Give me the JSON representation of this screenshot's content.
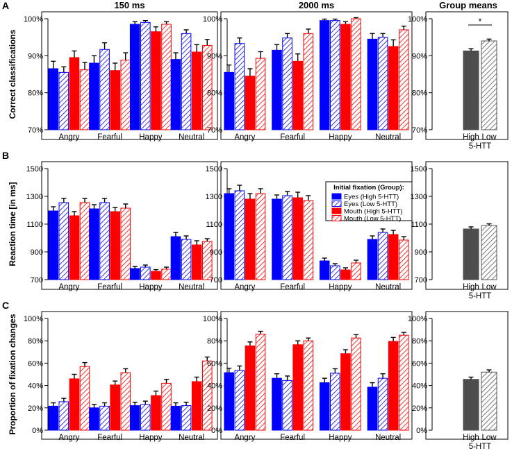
{
  "colors": {
    "high": "#0000ff",
    "mouth": "#ff0000",
    "group_high": "#4d4d4d",
    "group_low": "#555555"
  },
  "chart_data": [
    {
      "type": "bar",
      "panel": "A",
      "title": "150 ms",
      "ylabel": "Correct classifications",
      "ylim": [
        70,
        100
      ],
      "yticks": [
        70,
        80,
        90,
        100
      ],
      "ytick_labels": [
        "70%",
        "80%",
        "90%",
        "100%"
      ],
      "categories": [
        "Angry",
        "Fearful",
        "Happy",
        "Neutral"
      ],
      "series": [
        {
          "name": "Eyes (High 5-HTT)",
          "values": [
            86.5,
            88.0,
            98.5,
            89.0
          ],
          "errors": [
            2.0,
            2.0,
            0.7,
            1.8
          ]
        },
        {
          "name": "Eyes (Low 5-HTT)",
          "values": [
            85.5,
            91.7,
            99.0,
            96.0
          ],
          "errors": [
            1.5,
            1.8,
            0.5,
            1.0
          ]
        },
        {
          "name": "Mouth (High 5-HTT)",
          "values": [
            89.5,
            86.0,
            96.5,
            91.0
          ],
          "errors": [
            1.8,
            2.0,
            1.3,
            2.0
          ]
        },
        {
          "name": "Mouth (Low 5-HTT)",
          "values": [
            86.2,
            88.8,
            98.5,
            92.8
          ],
          "errors": [
            2.0,
            2.0,
            0.7,
            1.6
          ]
        }
      ]
    },
    {
      "type": "bar",
      "panel": "A",
      "title": "2000 ms",
      "ylim": [
        70,
        100
      ],
      "yticks": [
        70,
        80,
        90,
        100
      ],
      "ytick_labels": [
        "70%",
        "80%",
        "90%",
        "100%"
      ],
      "categories": [
        "Angry",
        "Fearful",
        "Happy",
        "Neutral"
      ],
      "series": [
        {
          "name": "Eyes (High 5-HTT)",
          "values": [
            85.5,
            91.5,
            99.5,
            94.5
          ],
          "errors": [
            2.0,
            1.5,
            0.4,
            1.5
          ]
        },
        {
          "name": "Eyes (Low 5-HTT)",
          "values": [
            93.3,
            94.8,
            99.5,
            95.0
          ],
          "errors": [
            1.5,
            1.2,
            0.4,
            1.0
          ]
        },
        {
          "name": "Mouth (High 5-HTT)",
          "values": [
            84.5,
            88.5,
            98.5,
            92.5
          ],
          "errors": [
            2.0,
            2.0,
            0.7,
            1.8
          ]
        },
        {
          "name": "Mouth (Low 5-HTT)",
          "values": [
            89.3,
            96.0,
            100.0,
            97.0
          ],
          "errors": [
            1.8,
            1.2,
            0.3,
            1.0
          ]
        }
      ]
    },
    {
      "type": "bar",
      "panel": "A",
      "title": "Group means",
      "ylim": [
        70,
        100
      ],
      "yticks": [
        70,
        80,
        90,
        100
      ],
      "ytick_labels": [
        "70%",
        "80%",
        "90%",
        "100%"
      ],
      "categories": [
        "High",
        "Low"
      ],
      "xlabel": "5-HTT",
      "significance": "*",
      "series": [
        {
          "name": "Group",
          "values": [
            91.3,
            94.0
          ],
          "errors": [
            0.6,
            0.5
          ]
        }
      ]
    },
    {
      "type": "bar",
      "panel": "B",
      "ylabel": "Reaction time [in ms]",
      "ylim": [
        700,
        1500
      ],
      "yticks": [
        700,
        900,
        1100,
        1300,
        1500
      ],
      "ytick_labels": [
        "700",
        "900",
        "1100",
        "1300",
        "1500"
      ],
      "categories": [
        "Angry",
        "Fearful",
        "Happy",
        "Neutral"
      ],
      "series": [
        {
          "name": "Eyes (High 5-HTT)",
          "values": [
            1195,
            1210,
            780,
            1010
          ],
          "errors": [
            30,
            30,
            15,
            30
          ]
        },
        {
          "name": "Eyes (Low 5-HTT)",
          "values": [
            1255,
            1255,
            790,
            990
          ],
          "errors": [
            30,
            30,
            15,
            25
          ]
        },
        {
          "name": "Mouth (High 5-HTT)",
          "values": [
            1160,
            1190,
            760,
            950
          ],
          "errors": [
            30,
            30,
            12,
            30
          ]
        },
        {
          "name": "Mouth (Low 5-HTT)",
          "values": [
            1255,
            1215,
            775,
            975
          ],
          "errors": [
            30,
            30,
            15,
            20
          ]
        }
      ]
    },
    {
      "type": "bar",
      "panel": "B",
      "ylim": [
        700,
        1500
      ],
      "yticks": [
        700,
        900,
        1100,
        1300,
        1500
      ],
      "ytick_labels": [
        "700",
        "900",
        "1100",
        "1300",
        "1500"
      ],
      "categories": [
        "Angry",
        "Fearful",
        "Happy",
        "Neutral"
      ],
      "legend_title": "Initial fixation (Group):",
      "series": [
        {
          "name": "Eyes (High 5-HTT)",
          "values": [
            1320,
            1280,
            835,
            990
          ],
          "errors": [
            35,
            30,
            20,
            25
          ]
        },
        {
          "name": "Eyes (Low 5-HTT)",
          "values": [
            1340,
            1305,
            800,
            1040
          ],
          "errors": [
            40,
            30,
            15,
            25
          ]
        },
        {
          "name": "Mouth (High 5-HTT)",
          "values": [
            1280,
            1290,
            770,
            1025
          ],
          "errors": [
            40,
            40,
            15,
            30
          ]
        },
        {
          "name": "Mouth (Low 5-HTT)",
          "values": [
            1320,
            1270,
            820,
            985
          ],
          "errors": [
            35,
            35,
            20,
            25
          ]
        }
      ]
    },
    {
      "type": "bar",
      "panel": "B",
      "ylim": [
        700,
        1500
      ],
      "yticks": [
        700,
        900,
        1100,
        1300,
        1500
      ],
      "ytick_labels": [
        "700",
        "900",
        "1100",
        "1300",
        "1500"
      ],
      "categories": [
        "High",
        "Low"
      ],
      "xlabel": "5-HTT",
      "series": [
        {
          "name": "Group",
          "values": [
            1065,
            1090
          ],
          "errors": [
            15,
            12
          ]
        }
      ]
    },
    {
      "type": "bar",
      "panel": "C",
      "ylabel": "Proportion of fixation changes",
      "ylim": [
        0,
        100
      ],
      "yticks": [
        0,
        20,
        40,
        60,
        80,
        100
      ],
      "ytick_labels": [
        "0%",
        "20%",
        "40%",
        "60%",
        "80%",
        "100%"
      ],
      "categories": [
        "Angry",
        "Fearful",
        "Happy",
        "Neutral"
      ],
      "series": [
        {
          "name": "Eyes (High 5-HTT)",
          "values": [
            21.5,
            20.0,
            22.0,
            21.5
          ],
          "errors": [
            3.0,
            3.0,
            3.0,
            3.0
          ]
        },
        {
          "name": "Eyes (Low 5-HTT)",
          "values": [
            25.5,
            21.5,
            23.0,
            22.0
          ],
          "errors": [
            3.0,
            3.0,
            3.0,
            3.0
          ]
        },
        {
          "name": "Mouth (High 5-HTT)",
          "values": [
            46.0,
            40.5,
            31.0,
            43.5
          ],
          "errors": [
            4.0,
            3.5,
            4.0,
            4.0
          ]
        },
        {
          "name": "Mouth (Low 5-HTT)",
          "values": [
            57.0,
            51.5,
            42.0,
            62.0
          ],
          "errors": [
            3.5,
            3.5,
            3.5,
            3.5
          ]
        }
      ]
    },
    {
      "type": "bar",
      "panel": "C",
      "ylim": [
        0,
        100
      ],
      "yticks": [
        0,
        20,
        40,
        60,
        80,
        100
      ],
      "ytick_labels": [
        "0%",
        "20%",
        "40%",
        "60%",
        "80%",
        "100%"
      ],
      "categories": [
        "Angry",
        "Fearful",
        "Happy",
        "Neutral"
      ],
      "series": [
        {
          "name": "Eyes (High 5-HTT)",
          "values": [
            51.5,
            46.5,
            42.5,
            38.5
          ],
          "errors": [
            4.0,
            4.0,
            4.0,
            4.0
          ]
        },
        {
          "name": "Eyes (Low 5-HTT)",
          "values": [
            53.5,
            44.5,
            51.0,
            46.5
          ],
          "errors": [
            4.0,
            4.0,
            4.0,
            4.0
          ]
        },
        {
          "name": "Mouth (High 5-HTT)",
          "values": [
            75.5,
            76.5,
            68.5,
            79.5
          ],
          "errors": [
            3.5,
            3.5,
            3.5,
            3.5
          ]
        },
        {
          "name": "Mouth (Low 5-HTT)",
          "values": [
            86.0,
            80.0,
            82.5,
            85.0
          ],
          "errors": [
            2.5,
            2.5,
            3.0,
            2.5
          ]
        }
      ]
    },
    {
      "type": "bar",
      "panel": "C",
      "ylim": [
        0,
        100
      ],
      "yticks": [
        0,
        20,
        40,
        60,
        80,
        100
      ],
      "ytick_labels": [
        "0%",
        "20%",
        "40%",
        "60%",
        "80%",
        "100%"
      ],
      "categories": [
        "High",
        "Low"
      ],
      "xlabel": "5-HTT",
      "series": [
        {
          "name": "Group",
          "values": [
            45.5,
            52.0
          ],
          "errors": [
            2.0,
            2.0
          ]
        }
      ]
    }
  ]
}
